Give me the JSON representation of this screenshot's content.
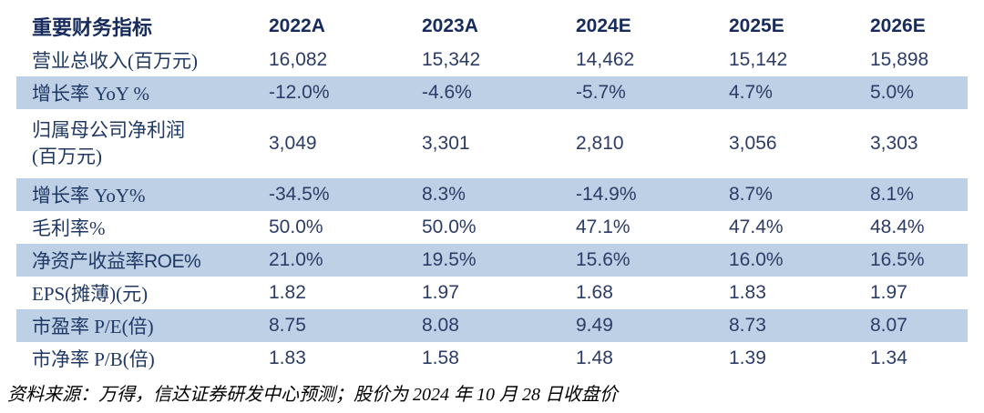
{
  "colors": {
    "header_text": "#172B5C",
    "label_text": "#1F3864",
    "value_text": "#2C3C66",
    "shaded_row_bg": "#BDD0E6",
    "source_text": "#000000"
  },
  "table": {
    "title_column_header": "重要财务指标",
    "year_headers": [
      "2022A",
      "2023A",
      "2024E",
      "2025E",
      "2026E"
    ],
    "rows": [
      {
        "label": "营业总收入(百万元)",
        "values": [
          "16,082",
          "15,342",
          "14,462",
          "15,142",
          "15,898"
        ],
        "shaded": false
      },
      {
        "label": "增长率 YoY %",
        "values": [
          "-12.0%",
          "-4.6%",
          "-5.7%",
          "4.7%",
          "5.0%"
        ],
        "shaded": true
      },
      {
        "label_lines": [
          "归属母公司净利润",
          "(百万元)"
        ],
        "values": [
          "3,049",
          "3,301",
          "2,810",
          "3,056",
          "3,303"
        ],
        "shaded": false,
        "tall": true
      },
      {
        "label": "增长率 YoY%",
        "values": [
          "-34.5%",
          "8.3%",
          "-14.9%",
          "8.7%",
          "8.1%"
        ],
        "shaded": true
      },
      {
        "label": "毛利率%",
        "values": [
          "50.0%",
          "50.0%",
          "47.1%",
          "47.4%",
          "48.4%"
        ],
        "shaded": false
      },
      {
        "label": "净资产收益率ROE%",
        "values": [
          "21.0%",
          "19.5%",
          "15.6%",
          "16.0%",
          "16.5%"
        ],
        "shaded": true,
        "label_font": "sans"
      },
      {
        "label": "EPS(摊薄)(元)",
        "values": [
          "1.82",
          "1.97",
          "1.68",
          "1.83",
          "1.97"
        ],
        "shaded": false
      },
      {
        "label": "市盈率 P/E(倍)",
        "values": [
          "8.75",
          "8.08",
          "9.49",
          "8.73",
          "8.07"
        ],
        "shaded": true
      },
      {
        "label": "市净率 P/B(倍)",
        "values": [
          "1.83",
          "1.58",
          "1.48",
          "1.39",
          "1.34"
        ],
        "shaded": false
      }
    ]
  },
  "footer": {
    "source_note": "资料来源：万得，信达证券研发中心预测；股价为 2024 年 10 月 28 日收盘价"
  }
}
